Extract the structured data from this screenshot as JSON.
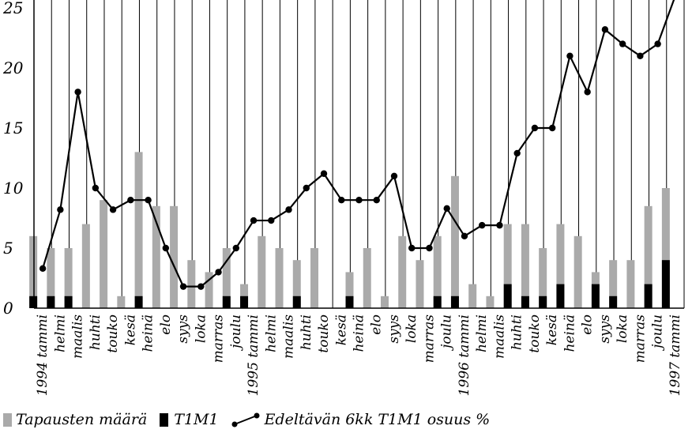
{
  "chart_data": {
    "type": "bar",
    "categories": [
      "1994 tammi",
      "helmi",
      "maalis",
      "huhti",
      "touko",
      "kesä",
      "heinä",
      "elo",
      "syys",
      "loka",
      "marras",
      "joulu",
      "1995 tammi",
      "helmi",
      "maalis",
      "huhti",
      "touko",
      "kesä",
      "heinä",
      "elo",
      "syys",
      "loka",
      "marras",
      "joulu",
      "1996 tammi",
      "helmi",
      "maalis",
      "huhti",
      "touko",
      "kesä",
      "heinä",
      "elo",
      "syys",
      "loka",
      "marras",
      "joulu",
      "1997 tammi"
    ],
    "series": [
      {
        "name": "Tapausten määrä",
        "kind": "bar",
        "color": "#aaaaaa",
        "values": [
          6,
          5,
          5,
          7,
          9,
          1,
          13,
          8.5,
          8.5,
          4,
          3,
          5,
          2,
          6,
          5,
          4,
          5,
          0,
          3,
          5,
          1,
          6,
          4,
          6,
          11,
          2,
          1,
          7,
          7,
          5,
          7,
          6,
          3,
          4,
          4,
          8.5,
          10
        ]
      },
      {
        "name": "T1M1",
        "kind": "bar",
        "color": "#000000",
        "values": [
          1,
          1,
          1,
          0,
          0,
          0,
          1,
          0,
          0,
          0,
          0,
          1,
          1,
          0,
          0,
          1,
          0,
          0,
          1,
          0,
          0,
          0,
          0,
          1,
          1,
          0,
          0,
          2,
          1,
          1,
          2,
          0,
          2,
          1,
          0,
          2,
          4
        ]
      },
      {
        "name": "Edeltävän 6kk T1M1 osuus %",
        "kind": "line",
        "color": "#000000",
        "values": [
          3.3,
          8.2,
          18,
          10,
          8.2,
          9,
          9,
          5,
          1.8,
          1.8,
          3,
          5,
          7.3,
          7.3,
          8.2,
          10,
          11.2,
          9,
          9,
          9,
          11,
          5,
          5,
          8.3,
          6,
          6.9,
          6.9,
          12.9,
          15,
          15,
          21,
          18,
          23.2,
          22,
          21,
          22,
          26
        ]
      }
    ],
    "y_ticks": [
      "0",
      "5",
      "10",
      "15",
      "20",
      "25"
    ],
    "ylim": [
      0,
      26
    ],
    "grid": true,
    "legend_position": "bottom-left"
  }
}
